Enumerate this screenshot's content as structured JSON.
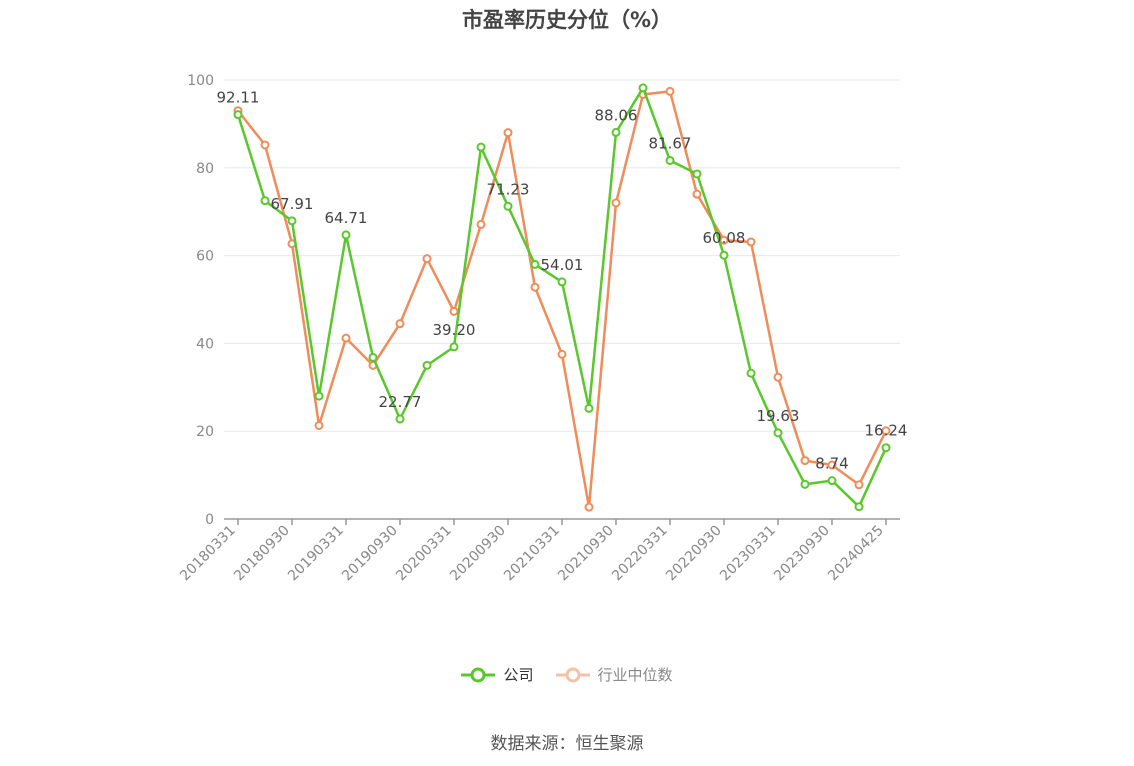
{
  "title": "市盈率历史分位（%）",
  "source_text": "数据来源：恒生聚源",
  "colors": {
    "company": "#5ac72c",
    "industry": "#f08c5a",
    "grid": "#e6e8f0",
    "axis": "#999999"
  },
  "chart_data": {
    "type": "line",
    "title": "市盈率历史分位（%）",
    "ylim": [
      0,
      100
    ],
    "yticks": [
      0,
      20,
      40,
      60,
      80,
      100
    ],
    "grid": true,
    "legend_position": "bottom-center",
    "x": [
      "20180331",
      "20180630",
      "20180930",
      "20181231",
      "20190331",
      "20190630",
      "20190930",
      "20191231",
      "20200331",
      "20200630",
      "20200930",
      "20201231",
      "20210331",
      "20210630",
      "20210930",
      "20211231",
      "20220331",
      "20220630",
      "20220930",
      "20221231",
      "20230331",
      "20230630",
      "20230930",
      "20231231",
      "20240425"
    ],
    "x_tick_labels": [
      "20180331",
      "20180930",
      "20190331",
      "20190930",
      "20200331",
      "20200930",
      "20210331",
      "20210930",
      "20220331",
      "20220930",
      "20230331",
      "20230930",
      "20240425"
    ],
    "series": [
      {
        "name": "公司",
        "values": [
          92.11,
          72.5,
          67.91,
          28.0,
          64.71,
          36.8,
          22.77,
          35.0,
          39.2,
          84.7,
          71.23,
          58.0,
          54.01,
          25.2,
          88.06,
          98.2,
          81.67,
          78.6,
          60.08,
          33.2,
          19.63,
          7.9,
          8.74,
          2.8,
          16.24
        ],
        "labels": {
          "0": "92.11",
          "2": "67.91",
          "4": "64.71",
          "6": "22.77",
          "8": "39.20",
          "10": "71.23",
          "12": "54.01",
          "14": "88.06",
          "16": "81.67",
          "18": "60.08",
          "20": "19.63",
          "22": "8.74",
          "24": "16.24"
        }
      },
      {
        "name": "行业中位数",
        "values": [
          93.0,
          85.2,
          62.7,
          21.3,
          41.2,
          35.0,
          44.5,
          59.3,
          47.3,
          67.1,
          88.0,
          52.8,
          37.5,
          2.7,
          72.0,
          96.7,
          97.4,
          74.0,
          63.5,
          63.1,
          32.3,
          13.3,
          12.3,
          7.8,
          20.1
        ]
      }
    ]
  }
}
